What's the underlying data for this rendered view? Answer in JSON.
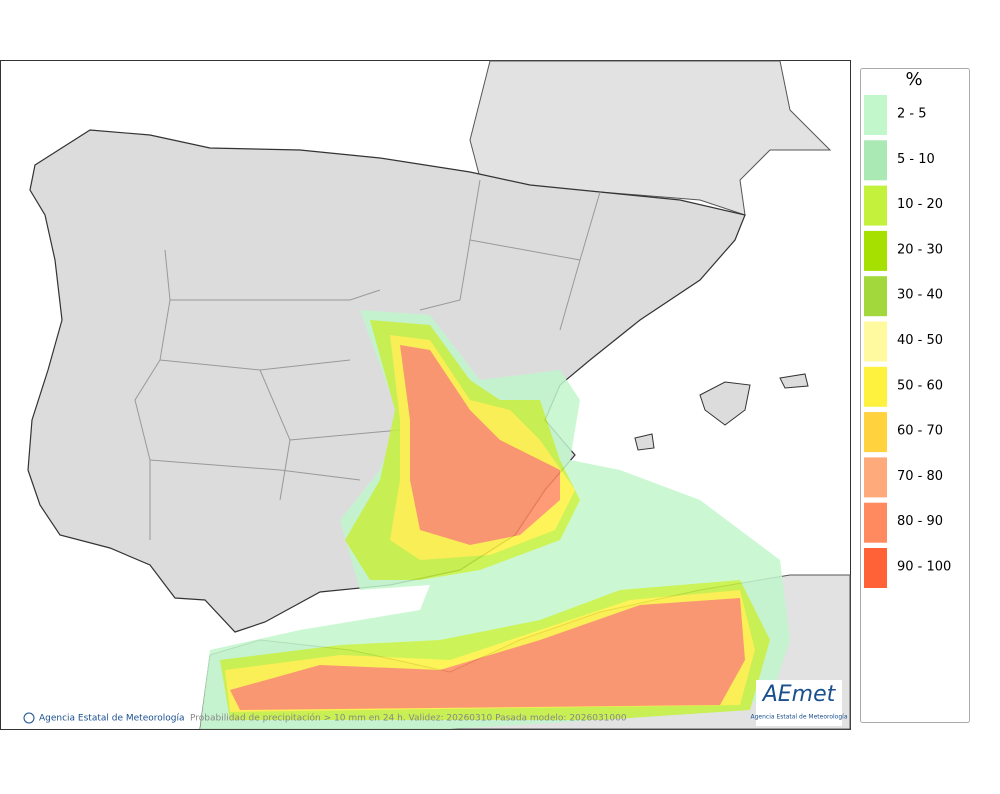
{
  "legend": {
    "title": "%",
    "items": [
      {
        "label": "2 - 5",
        "color": "#c2f7cc"
      },
      {
        "label": "5 - 10",
        "color": "#aae8b4"
      },
      {
        "label": "10 - 20",
        "color": "#c4f23c"
      },
      {
        "label": "20 - 30",
        "color": "#a6e000"
      },
      {
        "label": "30 - 40",
        "color": "#a2d83c"
      },
      {
        "label": "40 - 50",
        "color": "#fff9a0"
      },
      {
        "label": "50 - 60",
        "color": "#fff23e"
      },
      {
        "label": "60 - 70",
        "color": "#ffd23e"
      },
      {
        "label": "70 - 80",
        "color": "#ffaa7a"
      },
      {
        "label": "80 - 90",
        "color": "#ff8a60"
      },
      {
        "label": "90 - 100",
        "color": "#ff6236"
      }
    ]
  },
  "footer": {
    "credit": "Agencia Estatal de Meteorología",
    "caption": "Probabilidad de precipitación > 10 mm en 24 h. Validez: 20260310 Pasada modelo: 2026031000"
  },
  "logo": {
    "name": "AEmet",
    "subtitle": "Agencia Estatal de Meteorología"
  }
}
